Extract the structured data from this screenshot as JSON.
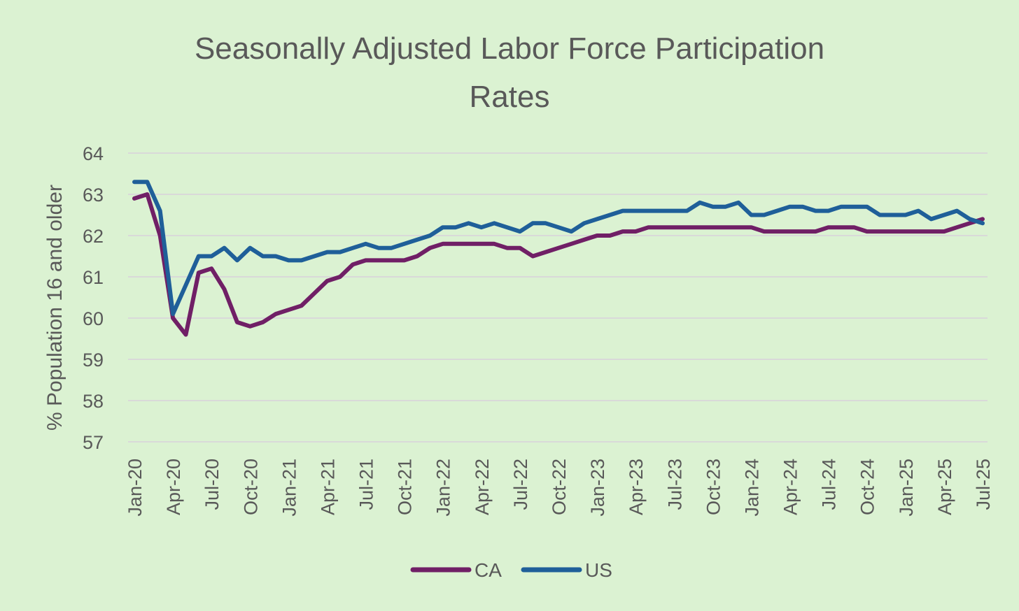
{
  "chart_data": {
    "type": "line",
    "title": "Seasonally Adjusted Labor Force Participation Rates",
    "title_lines": [
      "Seasonally Adjusted Labor Force Participation",
      "Rates"
    ],
    "xlabel": "",
    "ylabel": "% Population 16 and older",
    "ylim": [
      57,
      64
    ],
    "y_ticks": [
      "57",
      "58",
      "59",
      "60",
      "61",
      "62",
      "63",
      "64"
    ],
    "grid": true,
    "legend_position": "bottom",
    "x_tick_labels": [
      "Jan-20",
      "Apr-20",
      "Jul-20",
      "Oct-20",
      "Jan-21",
      "Apr-21",
      "Jul-21",
      "Oct-21",
      "Jan-22",
      "Apr-22",
      "Jul-22",
      "Oct-22",
      "Jan-23",
      "Apr-23",
      "Jul-23",
      "Oct-23",
      "Jan-24",
      "Apr-24",
      "Jul-24",
      "Oct-24",
      "Jan-25",
      "Apr-25",
      "Jul-25"
    ],
    "x_tick_every_months": 3,
    "num_points": 67,
    "series": [
      {
        "name": "CA",
        "color": "#701f66",
        "values": [
          62.9,
          63.0,
          62.0,
          60.0,
          59.6,
          61.1,
          61.2,
          60.7,
          59.9,
          59.8,
          59.9,
          60.1,
          60.2,
          60.3,
          60.6,
          60.9,
          61.0,
          61.3,
          61.4,
          61.4,
          61.4,
          61.4,
          61.5,
          61.7,
          61.8,
          61.8,
          61.8,
          61.8,
          61.8,
          61.7,
          61.7,
          61.5,
          61.6,
          61.7,
          61.8,
          61.9,
          62.0,
          62.0,
          62.1,
          62.1,
          62.2,
          62.2,
          62.2,
          62.2,
          62.2,
          62.2,
          62.2,
          62.2,
          62.2,
          62.1,
          62.1,
          62.1,
          62.1,
          62.1,
          62.2,
          62.2,
          62.2,
          62.1,
          62.1,
          62.1,
          62.1,
          62.1,
          62.1,
          62.1,
          62.2,
          62.3,
          62.4
        ]
      },
      {
        "name": "US",
        "color": "#1f5f99",
        "values": [
          63.3,
          63.3,
          62.6,
          60.1,
          60.8,
          61.5,
          61.5,
          61.7,
          61.4,
          61.7,
          61.5,
          61.5,
          61.4,
          61.4,
          61.5,
          61.6,
          61.6,
          61.7,
          61.8,
          61.7,
          61.7,
          61.8,
          61.9,
          62.0,
          62.2,
          62.2,
          62.3,
          62.2,
          62.3,
          62.2,
          62.1,
          62.3,
          62.3,
          62.2,
          62.1,
          62.3,
          62.4,
          62.5,
          62.6,
          62.6,
          62.6,
          62.6,
          62.6,
          62.6,
          62.8,
          62.7,
          62.7,
          62.8,
          62.5,
          62.5,
          62.6,
          62.7,
          62.7,
          62.6,
          62.6,
          62.7,
          62.7,
          62.7,
          62.5,
          62.5,
          62.5,
          62.6,
          62.4,
          62.5,
          62.6,
          62.4,
          62.3
        ]
      }
    ]
  }
}
